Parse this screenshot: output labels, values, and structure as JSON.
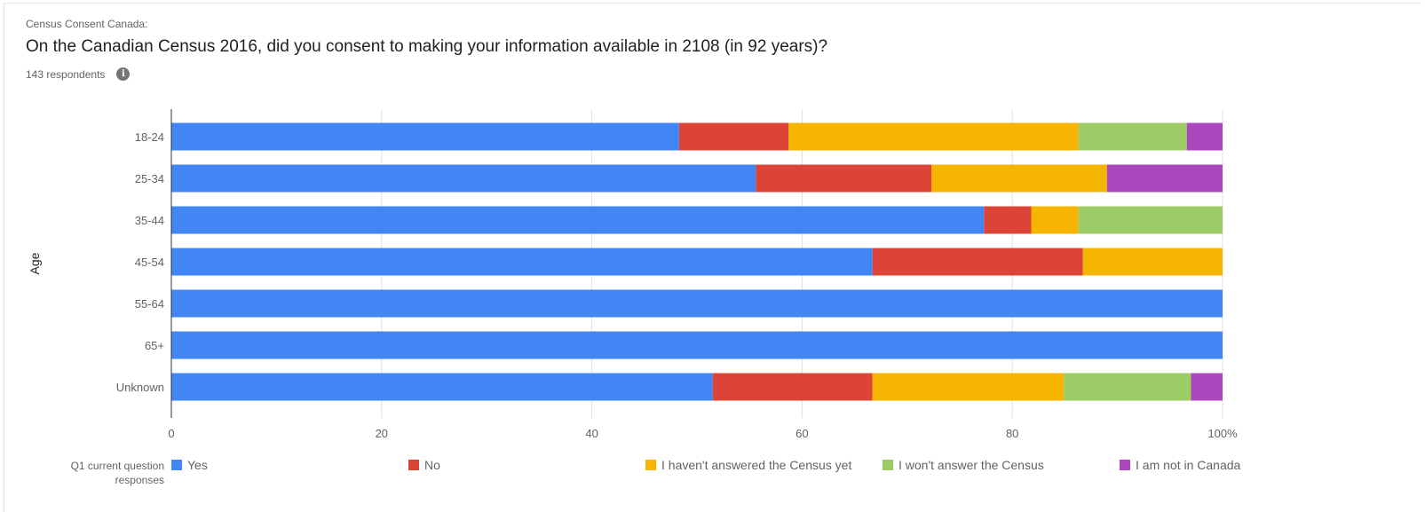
{
  "header": {
    "overline": "Census Consent Canada:",
    "title": "On the Canadian Census 2016, did you consent to making your information available in 2108 (in 92 years)?",
    "respondents": "143 respondents",
    "info_icon": "info-icon"
  },
  "legend": {
    "header": "Q1 current question responses"
  },
  "chart_data": {
    "type": "bar",
    "orientation": "horizontal",
    "stacked": "percent",
    "ylabel": "Age",
    "xlabel": "",
    "xlim": [
      0,
      100
    ],
    "x_ticks": [
      "0",
      "20",
      "40",
      "60",
      "80",
      "100%"
    ],
    "x_tick_values": [
      0,
      20,
      40,
      60,
      80,
      100
    ],
    "grid": true,
    "legend_position": "bottom",
    "categories": [
      "18-24",
      "25-34",
      "35-44",
      "45-54",
      "55-64",
      "65+",
      "Unknown"
    ],
    "series": [
      {
        "name": "Yes",
        "color": "#4285f4",
        "values": [
          48.3,
          55.6,
          77.3,
          66.7,
          100,
          100,
          51.5
        ]
      },
      {
        "name": "No",
        "color": "#db4437",
        "values": [
          10.4,
          16.7,
          4.5,
          20.0,
          0,
          0,
          15.2
        ]
      },
      {
        "name": "I haven't answered the Census yet",
        "color": "#f4b400",
        "values": [
          27.6,
          16.7,
          4.5,
          13.3,
          0,
          0,
          18.2
        ]
      },
      {
        "name": "I won't answer the Census",
        "color": "#9ccc65",
        "values": [
          10.3,
          0,
          13.7,
          0,
          0,
          0,
          12.1
        ]
      },
      {
        "name": "I am not in Canada",
        "color": "#ab47bc",
        "values": [
          3.4,
          11.0,
          0,
          0,
          0,
          0,
          3.0
        ]
      }
    ]
  }
}
